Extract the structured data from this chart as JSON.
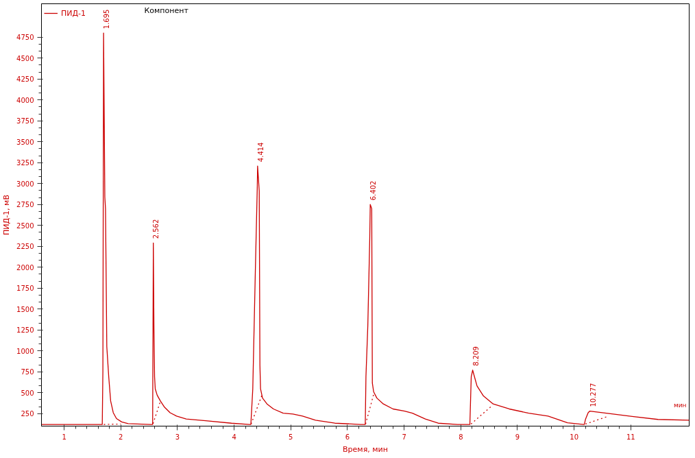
{
  "chart_data": {
    "type": "line",
    "ylabel": "ПИД-1, мВ",
    "xlabel": "Время, мин",
    "annotations": [
      "Компонент",
      "мин",
      {
        "text": "1.695",
        "x": 1.696,
        "y": 4800
      },
      {
        "text": "2.562",
        "x": 2.562,
        "y": 2290
      },
      {
        "text": "4.414",
        "x": 4.414,
        "y": 3210
      },
      {
        "text": "6.402",
        "x": 6.402,
        "y": 2750
      },
      {
        "text": "8.209",
        "x": 8.209,
        "y": 770
      },
      {
        "text": "10.277",
        "x": 10.277,
        "y": 280
      }
    ],
    "series": [
      {
        "name": "ПИД-1",
        "color": "#cc0000",
        "line_style": "solid",
        "x": [
          0.6,
          1.673,
          1.684,
          1.696,
          1.718,
          1.73,
          1.753,
          1.787,
          1.821,
          1.867,
          1.924,
          2.015,
          2.129,
          2.528,
          2.562,
          2.574,
          2.585,
          2.596,
          2.608,
          2.642,
          2.699,
          2.767,
          2.87,
          2.984,
          3.155,
          3.497,
          3.953,
          4.272,
          4.295,
          4.329,
          4.375,
          4.409,
          4.414,
          4.443,
          4.455,
          4.466,
          4.501,
          4.58,
          4.694,
          4.866,
          5.037,
          5.208,
          5.436,
          5.778,
          6.234,
          6.314,
          6.326,
          6.359,
          6.393,
          6.402,
          6.428,
          6.439,
          6.462,
          6.519,
          6.633,
          6.804,
          7.009,
          7.146,
          7.374,
          7.602,
          7.944,
          8.149,
          8.16,
          8.184,
          8.209,
          8.241,
          8.286,
          8.4,
          8.571,
          8.856,
          9.198,
          9.54,
          9.883,
          10.168,
          10.179,
          10.202,
          10.247,
          10.277,
          10.567,
          11.023,
          11.479,
          12.03
        ],
        "values": [
          120,
          120,
          760,
          4800,
          2840,
          2700,
          1050,
          690,
          400,
          260,
          190,
          150,
          130,
          120,
          120,
          2290,
          1260,
          690,
          545,
          470,
          400,
          330,
          260,
          220,
          185,
          165,
          135,
          120,
          120,
          545,
          1980,
          2980,
          3210,
          2910,
          830,
          545,
          435,
          365,
          305,
          255,
          245,
          220,
          170,
          135,
          120,
          120,
          690,
          1300,
          2340,
          2750,
          2700,
          615,
          510,
          435,
          365,
          305,
          280,
          255,
          185,
          135,
          120,
          120,
          120,
          690,
          770,
          690,
          580,
          460,
          365,
          305,
          255,
          220,
          140,
          120,
          120,
          185,
          260,
          280,
          255,
          215,
          180,
          170
        ]
      },
      {
        "color": "#cc0000",
        "line_style": "dotted",
        "x": [
          1.7,
          2.0,
          null,
          2.57,
          2.7,
          null,
          4.3,
          4.49,
          null,
          6.32,
          6.47,
          null,
          8.18,
          8.56,
          null,
          10.2,
          10.61
        ],
        "values": [
          120,
          125,
          null,
          130,
          400,
          null,
          125,
          470,
          null,
          125,
          500,
          null,
          125,
          350,
          null,
          125,
          220
        ]
      }
    ],
    "xlim": [
      0.6,
      12.03
    ],
    "ylim": [
      100,
      5150
    ],
    "xticks": [
      1,
      2,
      3,
      4,
      5,
      6,
      7,
      8,
      9,
      10,
      11
    ],
    "yticks": [
      250,
      500,
      750,
      1000,
      1250,
      1500,
      1750,
      2000,
      2250,
      2500,
      2750,
      3000,
      3250,
      3500,
      3750,
      4000,
      4250,
      4500,
      4750
    ],
    "legend": "top left",
    "grid": false
  }
}
